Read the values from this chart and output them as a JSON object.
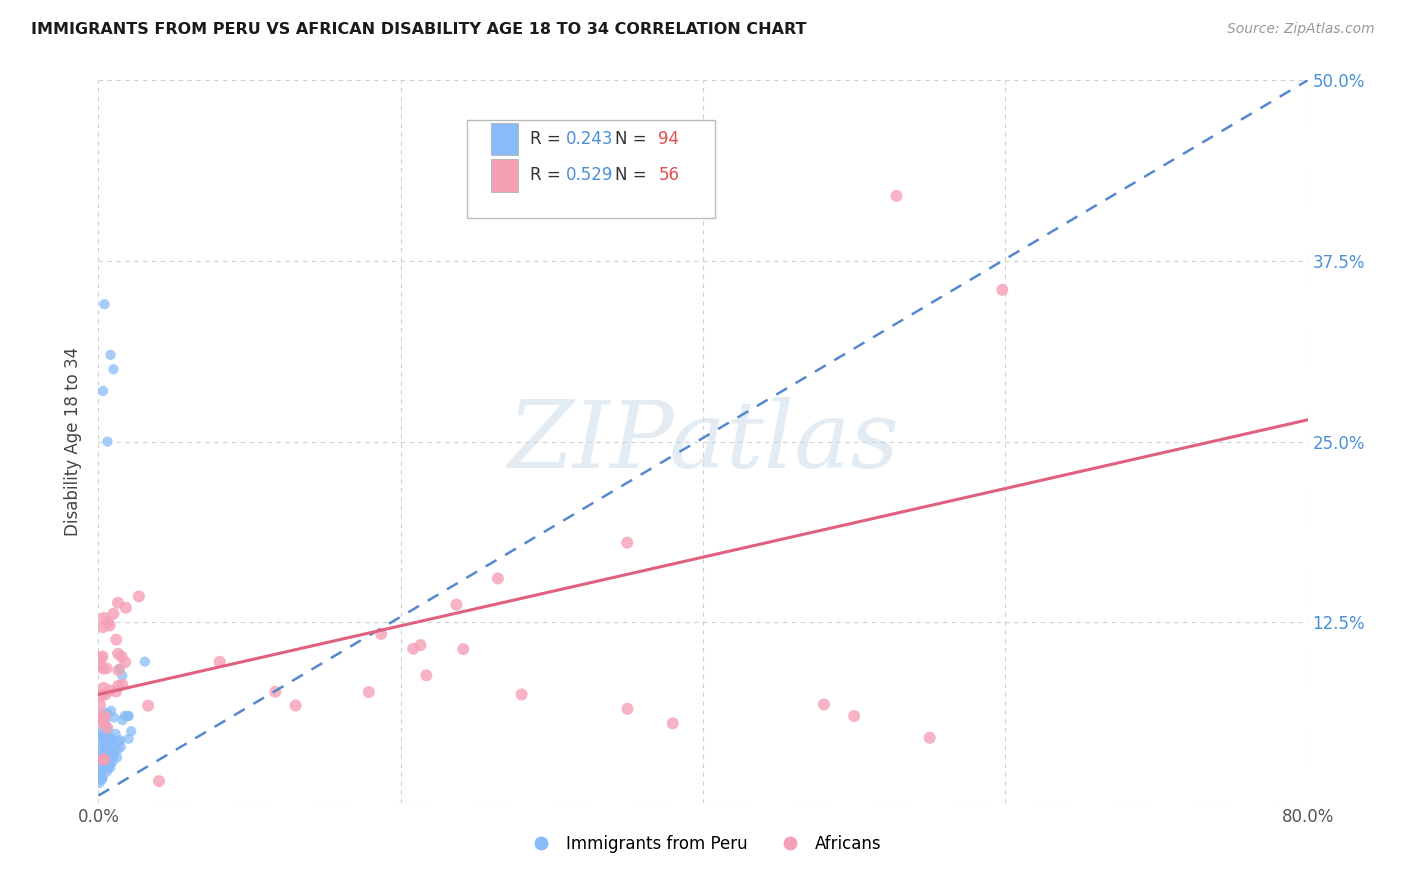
{
  "title": "IMMIGRANTS FROM PERU VS AFRICAN DISABILITY AGE 18 TO 34 CORRELATION CHART",
  "source": "Source: ZipAtlas.com",
  "ylabel": "Disability Age 18 to 34",
  "xlim": [
    0,
    0.8
  ],
  "ylim": [
    0,
    0.5
  ],
  "xticks": [
    0.0,
    0.2,
    0.4,
    0.6,
    0.8
  ],
  "xticklabels": [
    "0.0%",
    "",
    "",
    "",
    "80.0%"
  ],
  "yticks": [
    0.0,
    0.125,
    0.25,
    0.375,
    0.5
  ],
  "yticklabels": [
    "",
    "12.5%",
    "25.0%",
    "37.5%",
    "50.0%"
  ],
  "background_color": "#ffffff",
  "grid_color": "#d0d0d0",
  "peru_R": 0.243,
  "peru_N": 94,
  "africa_R": 0.529,
  "africa_N": 56,
  "peru_color": "#88bbf8",
  "africa_color": "#f5a0b5",
  "peru_trend_color": "#5588cc",
  "africa_trend_color": "#e06080",
  "peru_trend_x0": 0.0,
  "peru_trend_y0": 0.005,
  "peru_trend_x1": 0.8,
  "peru_trend_y1": 0.5,
  "africa_trend_x0": 0.0,
  "africa_trend_y0": 0.075,
  "africa_trend_x1": 0.8,
  "africa_trend_y1": 0.265,
  "watermark": "ZIPatlas",
  "watermark_color": "#c8d8e8",
  "watermark_alpha": 0.5
}
